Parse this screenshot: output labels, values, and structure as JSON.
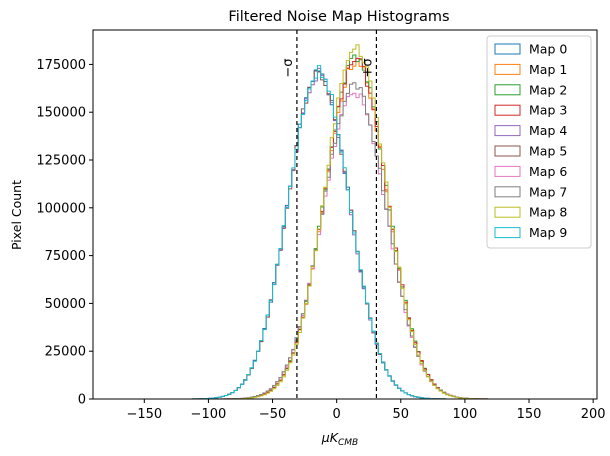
{
  "chart_data": {
    "type": "histogram",
    "title": "Filtered Noise Map Histograms",
    "xlabel": "μK",
    "xlabel_subscript": "CMB",
    "ylabel": "Pixel Count",
    "xlim": [
      -190,
      203
    ],
    "ylim": [
      0,
      193000
    ],
    "xticks": [
      -150,
      -100,
      -50,
      0,
      50,
      100,
      150,
      200
    ],
    "yticks": [
      0,
      25000,
      50000,
      75000,
      100000,
      125000,
      150000,
      175000
    ],
    "legend_position": "upper-right",
    "vlines": [
      {
        "x": -31,
        "label": "−σ",
        "style": "dashed",
        "color": "#000000"
      },
      {
        "x": 31,
        "label": "+σ",
        "style": "dashed",
        "color": "#000000"
      }
    ],
    "bin_width": 2.5,
    "series": [
      {
        "name": "Map 0",
        "color": "#1f77b4",
        "center": -14,
        "sigma": 24,
        "peak": 171000
      },
      {
        "name": "Map 1",
        "color": "#ff7f0e",
        "center": 15,
        "sigma": 24.5,
        "peak": 176000
      },
      {
        "name": "Map 2",
        "color": "#2ca02c",
        "center": 15,
        "sigma": 24.5,
        "peak": 178000
      },
      {
        "name": "Map 3",
        "color": "#d62728",
        "center": 15,
        "sigma": 24.5,
        "peak": 177000
      },
      {
        "name": "Map 4",
        "color": "#9467bd",
        "center": -14,
        "sigma": 24,
        "peak": 170000
      },
      {
        "name": "Map 5",
        "color": "#8c564b",
        "center": -14,
        "sigma": 24,
        "peak": 170500
      },
      {
        "name": "Map 6",
        "color": "#e377c2",
        "center": 14,
        "sigma": 25,
        "peak": 161000
      },
      {
        "name": "Map 7",
        "color": "#7f7f7f",
        "center": 14,
        "sigma": 25,
        "peak": 163000
      },
      {
        "name": "Map 8",
        "color": "#bcbd22",
        "center": 15,
        "sigma": 24,
        "peak": 183000
      },
      {
        "name": "Map 9",
        "color": "#17becf",
        "center": -14,
        "sigma": 24,
        "peak": 171500
      }
    ]
  }
}
